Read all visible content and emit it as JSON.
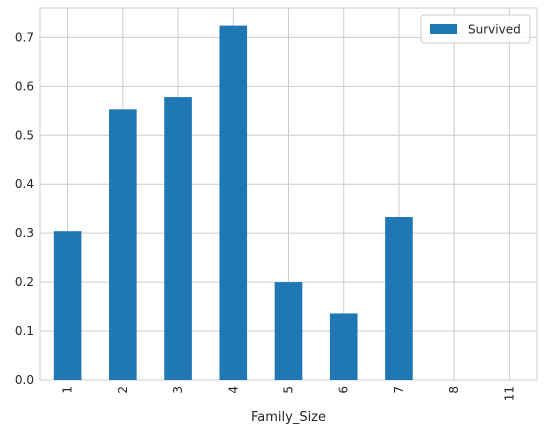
{
  "chart_data": {
    "type": "bar",
    "categories": [
      "1",
      "2",
      "3",
      "4",
      "5",
      "6",
      "7",
      "8",
      "11"
    ],
    "series": [
      {
        "name": "Survived",
        "color": "#1f77b4",
        "values": [
          0.304,
          0.553,
          0.578,
          0.724,
          0.2,
          0.136,
          0.333,
          0.0,
          0.0
        ]
      }
    ],
    "title": "",
    "xlabel": "Family_Size",
    "ylabel": "",
    "ylim": [
      0,
      0.76
    ],
    "yticks": [
      0.0,
      0.1,
      0.2,
      0.3,
      0.4,
      0.5,
      0.6,
      0.7
    ],
    "ytick_labels": [
      "0.0",
      "0.1",
      "0.2",
      "0.3",
      "0.4",
      "0.5",
      "0.6",
      "0.7"
    ],
    "xtick_rotation": "vertical",
    "grid": true,
    "legend": {
      "position": "top-right"
    }
  }
}
